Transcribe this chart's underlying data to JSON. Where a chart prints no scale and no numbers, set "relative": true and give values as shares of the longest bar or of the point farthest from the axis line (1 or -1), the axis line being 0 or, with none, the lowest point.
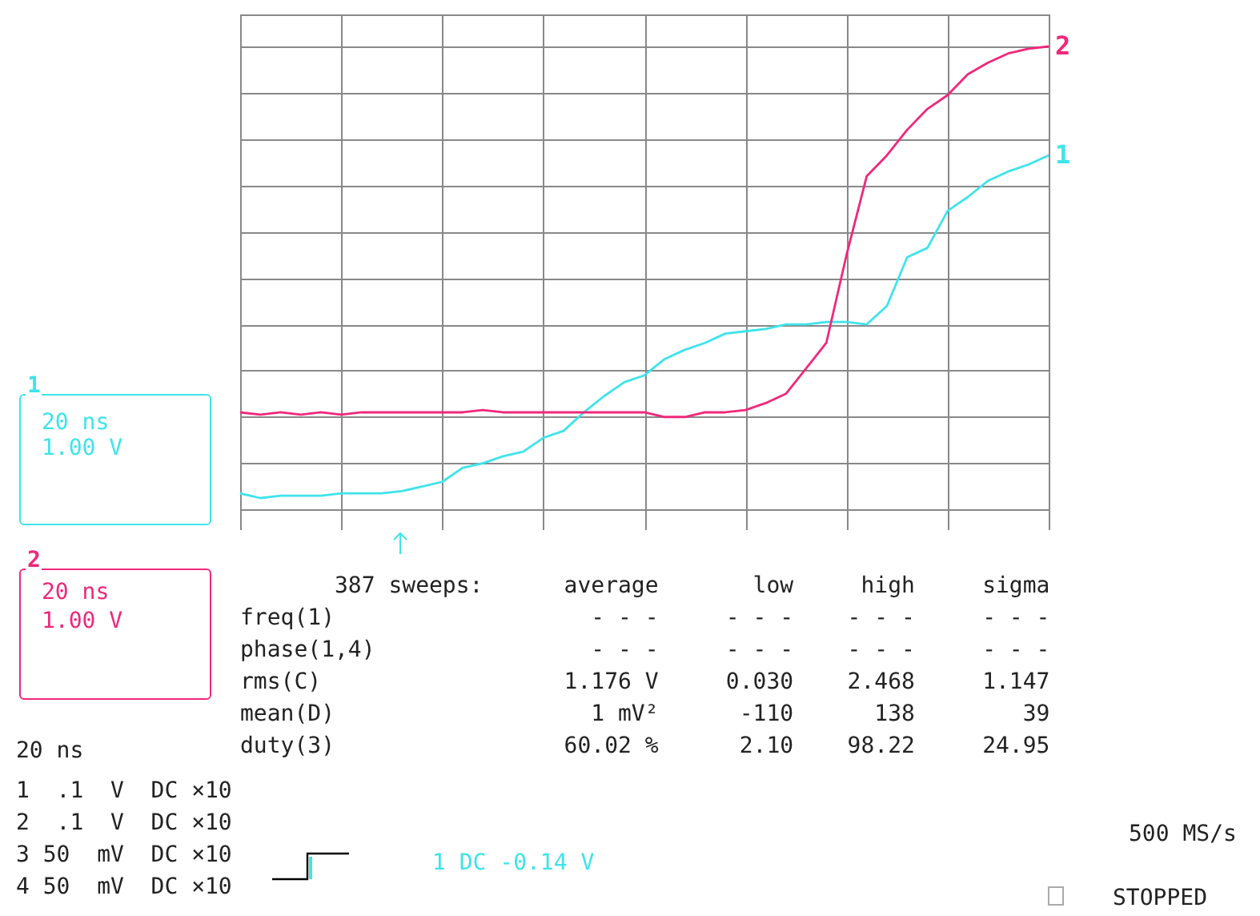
{
  "chart_data": {
    "type": "line",
    "relative": true,
    "grid": true,
    "categories": [
      null,
      null,
      null,
      null,
      null,
      null,
      null,
      null,
      null,
      null,
      null,
      null,
      null,
      null,
      null,
      null,
      null,
      null,
      null,
      null,
      null,
      null,
      null,
      null,
      null,
      null,
      null,
      null,
      null,
      null,
      null,
      null,
      null,
      null,
      null,
      null,
      null,
      null,
      null,
      null,
      null
    ],
    "series": [
      {
        "name": "1",
        "color": "#3ee4ea",
        "values": [
          -0.93,
          -0.95,
          -0.94,
          -0.94,
          -0.94,
          -0.93,
          -0.93,
          -0.93,
          -0.92,
          -0.9,
          -0.88,
          -0.82,
          -0.8,
          -0.77,
          -0.75,
          -0.69,
          -0.66,
          -0.58,
          -0.51,
          -0.45,
          -0.42,
          -0.35,
          -0.31,
          -0.28,
          -0.24,
          -0.23,
          -0.22,
          -0.2,
          -0.2,
          -0.19,
          -0.19,
          -0.2,
          -0.12,
          0.09,
          0.13,
          0.29,
          0.35,
          0.42,
          0.46,
          0.49,
          0.53
        ]
      },
      {
        "name": "2",
        "color": "#f0287a",
        "values": [
          -0.58,
          -0.59,
          -0.58,
          -0.59,
          -0.58,
          -0.59,
          -0.58,
          -0.58,
          -0.58,
          -0.58,
          -0.58,
          -0.58,
          -0.57,
          -0.58,
          -0.58,
          -0.58,
          -0.58,
          -0.58,
          -0.58,
          -0.58,
          -0.58,
          -0.6,
          -0.6,
          -0.58,
          -0.58,
          -0.57,
          -0.54,
          -0.5,
          -0.39,
          -0.28,
          0.1,
          0.44,
          0.53,
          0.64,
          0.73,
          0.79,
          0.88,
          0.93,
          0.97,
          0.99,
          1.0
        ]
      }
    ],
    "annotations": [
      "1",
      "20 ns",
      "1.00 V",
      "2",
      "20 ns",
      "1.00 V",
      "       387 sweeps:      average       low     high     sigma",
      "freq(1)                   - - -     - - -    - - -     - - -",
      "phase(1,4)                - - -     - - -    - - -     - - -",
      "rms(C)                  1.176 V     0.030    2.468     1.147",
      "mean(D)                   1 mV²      -110      138        39",
      "duty(3)                 60.02 %      2.10    98.22     24.95",
      "20 ns",
      "1  .1  V  DC ×10",
      "2  .1  V  DC ×10",
      "3 50  mV  DC ×10",
      "4 50  mV  DC ×10",
      "1 DC -0.14 V",
      "500 MS/s",
      "STOPPED"
    ]
  }
}
